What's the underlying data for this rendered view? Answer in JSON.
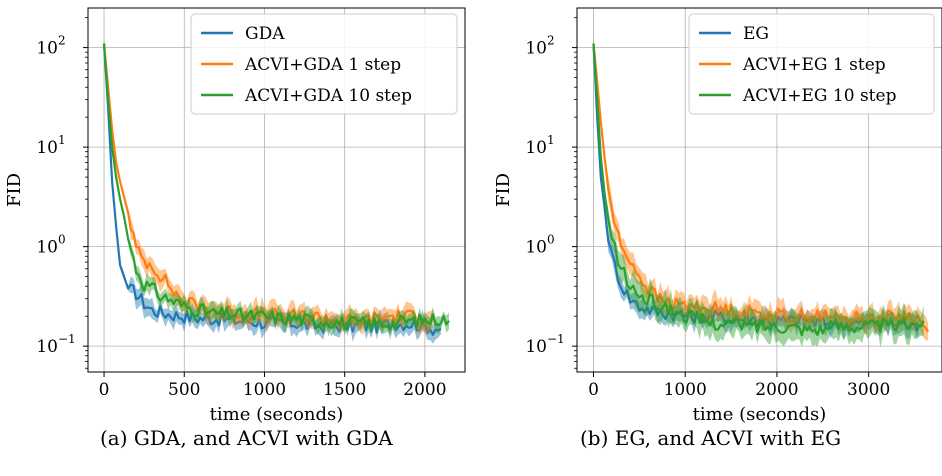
{
  "chart_data": [
    {
      "type": "line",
      "caption": "(a) GDA, and ACVI with GDA",
      "xlabel": "time (seconds)",
      "ylabel": "FID",
      "yscale": "log",
      "xlim": [
        -100,
        2250
      ],
      "ylim": [
        0.055,
        250
      ],
      "xticks": [
        0,
        500,
        1000,
        1500,
        2000
      ],
      "xtick_labels": [
        "0",
        "500",
        "1000",
        "1500",
        "2000"
      ],
      "yticks": [
        0.1,
        1,
        10,
        100
      ],
      "ytick_bases": [
        "10",
        "10",
        "10",
        "10"
      ],
      "ytick_exponents": [
        "−1",
        "0",
        "1",
        "2"
      ],
      "grid": true,
      "legend_position": "top-right",
      "series": [
        {
          "name": "GDA",
          "color": "#1f77b4",
          "x": [
            0,
            25,
            50,
            75,
            100,
            150,
            200,
            250,
            300,
            350,
            400,
            500,
            600,
            700,
            800,
            900,
            1000,
            1100,
            1200,
            1300,
            1400,
            1500,
            1600,
            1700,
            1800,
            1900,
            2000,
            2050,
            2100
          ],
          "y": [
            110,
            25,
            4.5,
            1.6,
            0.65,
            0.38,
            0.34,
            0.27,
            0.23,
            0.22,
            0.21,
            0.2,
            0.19,
            0.19,
            0.18,
            0.18,
            0.17,
            0.17,
            0.17,
            0.16,
            0.16,
            0.16,
            0.16,
            0.16,
            0.17,
            0.17,
            0.16,
            0.15,
            0.15
          ],
          "band": 0.18
        },
        {
          "name": "ACVI+GDA 1 step",
          "color": "#ff7f0e",
          "x": [
            0,
            25,
            50,
            75,
            100,
            150,
            200,
            250,
            300,
            350,
            400,
            450,
            500,
            600,
            700,
            800,
            900,
            1000,
            1100,
            1200,
            1300,
            1400,
            1500,
            1600,
            1700,
            1800,
            1900,
            2000,
            2050
          ],
          "y": [
            110,
            40,
            15,
            7,
            4.5,
            2.2,
            0.95,
            0.72,
            0.65,
            0.52,
            0.42,
            0.33,
            0.28,
            0.25,
            0.23,
            0.22,
            0.21,
            0.21,
            0.2,
            0.2,
            0.2,
            0.19,
            0.18,
            0.18,
            0.19,
            0.2,
            0.2,
            0.19,
            0.19
          ],
          "band": 0.2
        },
        {
          "name": "ACVI+GDA 10 step",
          "color": "#2ca02c",
          "x": [
            0,
            25,
            50,
            75,
            100,
            125,
            150,
            200,
            250,
            300,
            350,
            400,
            500,
            600,
            700,
            800,
            900,
            1000,
            1100,
            1200,
            1300,
            1400,
            1500,
            1600,
            1700,
            1800,
            1900,
            2000,
            2100,
            2150
          ],
          "y": [
            110,
            30,
            10,
            5,
            3,
            2,
            1.2,
            0.6,
            0.42,
            0.38,
            0.32,
            0.3,
            0.25,
            0.23,
            0.21,
            0.21,
            0.2,
            0.2,
            0.19,
            0.19,
            0.18,
            0.18,
            0.17,
            0.17,
            0.17,
            0.17,
            0.18,
            0.18,
            0.19,
            0.18
          ],
          "band": 0.16
        }
      ]
    },
    {
      "type": "line",
      "caption": "(b) EG, and ACVI with EG",
      "xlabel": "time (seconds)",
      "ylabel": "FID",
      "yscale": "log",
      "xlim": [
        -180,
        3800
      ],
      "ylim": [
        0.055,
        250
      ],
      "xticks": [
        0,
        1000,
        2000,
        3000
      ],
      "xtick_labels": [
        "0",
        "1000",
        "2000",
        "3000"
      ],
      "yticks": [
        0.1,
        1,
        10,
        100
      ],
      "ytick_bases": [
        "10",
        "10",
        "10",
        "10"
      ],
      "ytick_exponents": [
        "−1",
        "0",
        "1",
        "2"
      ],
      "grid": true,
      "legend_position": "top-right",
      "series": [
        {
          "name": "EG",
          "color": "#1f77b4",
          "x": [
            0,
            40,
            80,
            120,
            160,
            200,
            300,
            400,
            500,
            700,
            900,
            1100,
            1300,
            1500,
            1700,
            1900,
            2100,
            2300,
            2500,
            2700,
            2900,
            3100,
            3300,
            3500,
            3550
          ],
          "y": [
            110,
            20,
            5,
            2.5,
            1.3,
            0.8,
            0.42,
            0.3,
            0.25,
            0.22,
            0.21,
            0.2,
            0.2,
            0.19,
            0.19,
            0.18,
            0.18,
            0.18,
            0.17,
            0.17,
            0.17,
            0.17,
            0.17,
            0.16,
            0.16
          ],
          "band": 0.2
        },
        {
          "name": "ACVI+EG 1 step",
          "color": "#ff7f0e",
          "x": [
            0,
            40,
            80,
            120,
            160,
            200,
            250,
            300,
            400,
            500,
            600,
            700,
            900,
            1100,
            1300,
            1500,
            1700,
            1900,
            2100,
            2300,
            2500,
            2700,
            2900,
            3100,
            3300,
            3500,
            3650
          ],
          "y": [
            110,
            45,
            18,
            8,
            4,
            2.3,
            1.5,
            1.0,
            0.75,
            0.5,
            0.38,
            0.3,
            0.26,
            0.25,
            0.24,
            0.23,
            0.22,
            0.21,
            0.2,
            0.2,
            0.2,
            0.19,
            0.19,
            0.19,
            0.2,
            0.2,
            0.14
          ],
          "band": 0.22
        },
        {
          "name": "ACVI+EG 10 step",
          "color": "#2ca02c",
          "x": [
            0,
            40,
            80,
            120,
            160,
            200,
            300,
            400,
            500,
            700,
            900,
            1100,
            1300,
            1500,
            1700,
            1900,
            2100,
            2300,
            2500,
            2700,
            2900,
            3100,
            3300,
            3500,
            3600
          ],
          "y": [
            110,
            30,
            8,
            3.5,
            1.8,
            1.2,
            0.6,
            0.4,
            0.32,
            0.26,
            0.22,
            0.19,
            0.17,
            0.17,
            0.16,
            0.16,
            0.16,
            0.15,
            0.15,
            0.16,
            0.16,
            0.16,
            0.16,
            0.17,
            0.18
          ],
          "band": 0.28
        }
      ]
    }
  ]
}
